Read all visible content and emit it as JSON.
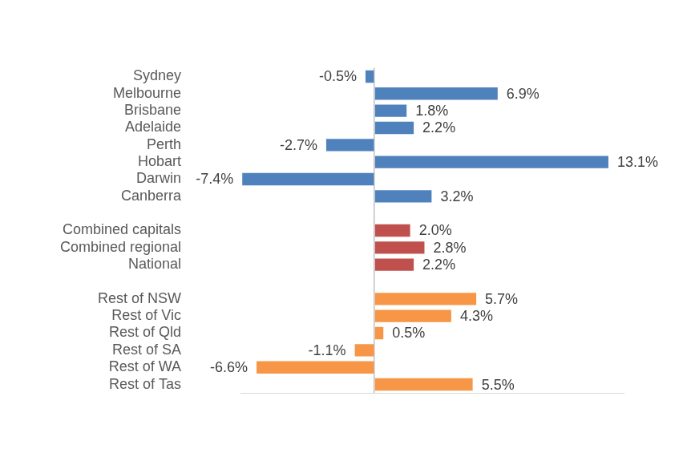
{
  "chart_data": {
    "type": "bar",
    "orientation": "horizontal",
    "categories": [
      "Sydney",
      "Melbourne",
      "Brisbane",
      "Adelaide",
      "Perth",
      "Hobart",
      "Darwin",
      "Canberra",
      null,
      "Combined capitals",
      "Combined regional",
      "National",
      null,
      "Rest of NSW",
      "Rest of Vic",
      "Rest of Qld",
      "Rest of SA",
      "Rest of WA",
      "Rest of Tas"
    ],
    "values": [
      -0.5,
      6.9,
      1.8,
      2.2,
      -2.7,
      13.1,
      -7.4,
      3.2,
      null,
      2.0,
      2.8,
      2.2,
      null,
      5.7,
      4.3,
      0.5,
      -1.1,
      -6.6,
      5.5
    ],
    "value_labels": [
      "-0.5%",
      "6.9%",
      "1.8%",
      "2.2%",
      "-2.7%",
      "13.1%",
      "-7.4%",
      "3.2%",
      null,
      "2.0%",
      "2.8%",
      "2.2%",
      null,
      "5.7%",
      "4.3%",
      "0.5%",
      "-1.1%",
      "-6.6%",
      "5.5%"
    ],
    "colors": [
      "#4f81bd",
      "#4f81bd",
      "#4f81bd",
      "#4f81bd",
      "#4f81bd",
      "#4f81bd",
      "#4f81bd",
      "#4f81bd",
      null,
      "#c0504d",
      "#c0504d",
      "#c0504d",
      null,
      "#f79646",
      "#f79646",
      "#f79646",
      "#f79646",
      "#f79646",
      "#f79646"
    ],
    "xlim": [
      -7.5,
      14
    ],
    "xticks": [
      0
    ],
    "grid": true,
    "data_labels": true,
    "tick_labels": "y"
  }
}
